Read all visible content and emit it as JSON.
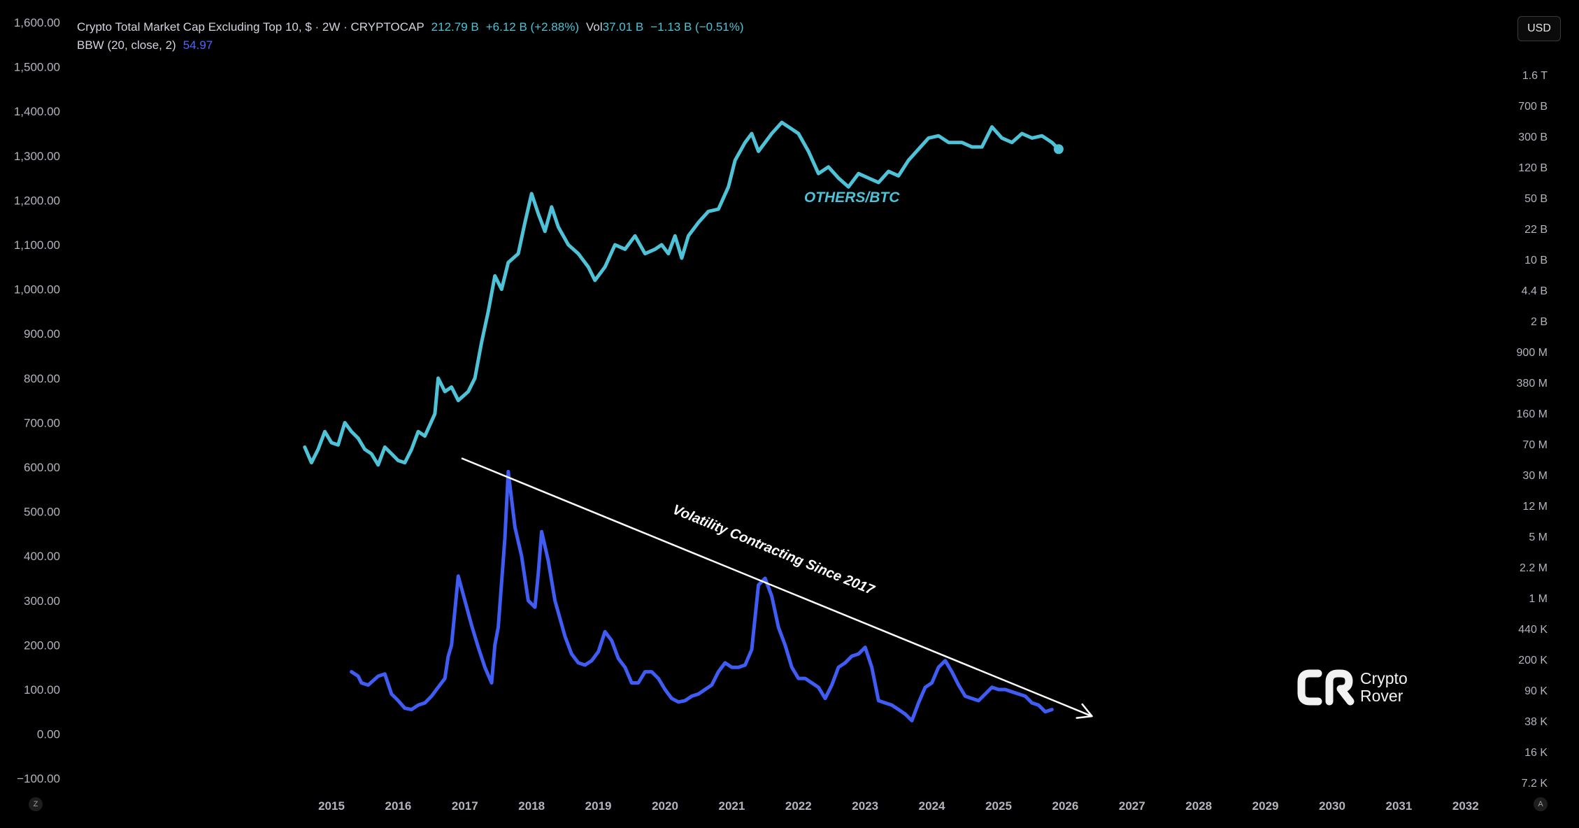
{
  "legend": {
    "title": "Crypto Total Market Cap Excluding Top 10, $ · 2W · CRYPTOCAP",
    "price": "212.79 B",
    "change": "+6.12 B (+2.88%)",
    "vol_label": "Vol",
    "vol_value": "37.01 B",
    "vol_change": "−1.13 B (−0.51%)",
    "bbw_label": "BBW (20, close, 2)",
    "bbw_value": "54.97"
  },
  "currency_button": "USD",
  "axis_left_button": "Z",
  "axis_right_button": "A",
  "brand": {
    "line1": "Crypto",
    "line2": "Rover"
  },
  "colors": {
    "others_btc": "#4ec2d6",
    "bbw": "#3f5cf5",
    "trendline": "#ffffff",
    "axis_text": "#b2b5be"
  },
  "chart_data": {
    "type": "line",
    "left_axis": {
      "ticks": [
        "1,600.00",
        "1,500.00",
        "1,400.00",
        "1,300.00",
        "1,200.00",
        "1,100.00",
        "1,000.00",
        "900.00",
        "800.00",
        "700.00",
        "600.00",
        "500.00",
        "400.00",
        "300.00",
        "200.00",
        "100.00",
        "0.00",
        "−100.00"
      ],
      "range": [
        -100,
        1600
      ]
    },
    "right_axis": {
      "ticks": [
        "1.6 T",
        "700 B",
        "300 B",
        "120 B",
        "50 B",
        "22 B",
        "10 B",
        "4.4 B",
        "2 B",
        "900 M",
        "380 M",
        "160 M",
        "70 M",
        "30 M",
        "12 M",
        "5 M",
        "2.2 M",
        "1 M",
        "440 K",
        "200 K",
        "90 K",
        "38 K",
        "16 K",
        "7.2 K"
      ]
    },
    "x_axis": {
      "ticks": [
        "2015",
        "2016",
        "2017",
        "2018",
        "2019",
        "2020",
        "2021",
        "2022",
        "2023",
        "2024",
        "2025",
        "2026",
        "2027",
        "2028",
        "2029",
        "2030",
        "2031",
        "2032"
      ],
      "range": [
        2014.0,
        2032.3
      ]
    },
    "series": [
      {
        "name": "OTHERS/BTC",
        "points": [
          [
            2014.6,
            645
          ],
          [
            2014.7,
            610
          ],
          [
            2014.8,
            640
          ],
          [
            2014.9,
            680
          ],
          [
            2015.0,
            655
          ],
          [
            2015.1,
            650
          ],
          [
            2015.2,
            700
          ],
          [
            2015.3,
            680
          ],
          [
            2015.4,
            665
          ],
          [
            2015.5,
            640
          ],
          [
            2015.6,
            630
          ],
          [
            2015.7,
            605
          ],
          [
            2015.8,
            645
          ],
          [
            2015.9,
            630
          ],
          [
            2016.0,
            615
          ],
          [
            2016.1,
            610
          ],
          [
            2016.2,
            640
          ],
          [
            2016.3,
            680
          ],
          [
            2016.4,
            670
          ],
          [
            2016.55,
            720
          ],
          [
            2016.6,
            800
          ],
          [
            2016.7,
            770
          ],
          [
            2016.8,
            780
          ],
          [
            2016.9,
            750
          ],
          [
            2017.05,
            770
          ],
          [
            2017.15,
            800
          ],
          [
            2017.25,
            880
          ],
          [
            2017.35,
            950
          ],
          [
            2017.45,
            1030
          ],
          [
            2017.55,
            1000
          ],
          [
            2017.65,
            1060
          ],
          [
            2017.8,
            1080
          ],
          [
            2017.9,
            1150
          ],
          [
            2018.0,
            1215
          ],
          [
            2018.1,
            1170
          ],
          [
            2018.2,
            1130
          ],
          [
            2018.3,
            1185
          ],
          [
            2018.4,
            1140
          ],
          [
            2018.55,
            1100
          ],
          [
            2018.7,
            1080
          ],
          [
            2018.85,
            1050
          ],
          [
            2018.95,
            1020
          ],
          [
            2019.1,
            1050
          ],
          [
            2019.25,
            1100
          ],
          [
            2019.4,
            1090
          ],
          [
            2019.55,
            1120
          ],
          [
            2019.7,
            1080
          ],
          [
            2019.85,
            1090
          ],
          [
            2019.95,
            1100
          ],
          [
            2020.05,
            1080
          ],
          [
            2020.15,
            1120
          ],
          [
            2020.25,
            1070
          ],
          [
            2020.35,
            1120
          ],
          [
            2020.5,
            1150
          ],
          [
            2020.65,
            1175
          ],
          [
            2020.8,
            1180
          ],
          [
            2020.95,
            1230
          ],
          [
            2021.05,
            1290
          ],
          [
            2021.2,
            1330
          ],
          [
            2021.3,
            1350
          ],
          [
            2021.4,
            1310
          ],
          [
            2021.5,
            1330
          ],
          [
            2021.6,
            1350
          ],
          [
            2021.75,
            1375
          ],
          [
            2021.9,
            1360
          ],
          [
            2022.0,
            1350
          ],
          [
            2022.15,
            1310
          ],
          [
            2022.3,
            1260
          ],
          [
            2022.45,
            1275
          ],
          [
            2022.6,
            1250
          ],
          [
            2022.75,
            1230
          ],
          [
            2022.9,
            1260
          ],
          [
            2023.05,
            1250
          ],
          [
            2023.2,
            1240
          ],
          [
            2023.35,
            1265
          ],
          [
            2023.5,
            1255
          ],
          [
            2023.65,
            1290
          ],
          [
            2023.8,
            1315
          ],
          [
            2023.95,
            1340
          ],
          [
            2024.1,
            1345
          ],
          [
            2024.25,
            1330
          ],
          [
            2024.45,
            1330
          ],
          [
            2024.6,
            1320
          ],
          [
            2024.75,
            1320
          ],
          [
            2024.9,
            1365
          ],
          [
            2025.05,
            1340
          ],
          [
            2025.2,
            1330
          ],
          [
            2025.35,
            1350
          ],
          [
            2025.5,
            1340
          ],
          [
            2025.65,
            1345
          ],
          [
            2025.8,
            1330
          ],
          [
            2025.9,
            1315
          ]
        ]
      },
      {
        "name": "BBW (20, close, 2)",
        "points": [
          [
            2015.3,
            140
          ],
          [
            2015.4,
            130
          ],
          [
            2015.45,
            115
          ],
          [
            2015.55,
            110
          ],
          [
            2015.7,
            130
          ],
          [
            2015.8,
            135
          ],
          [
            2015.9,
            90
          ],
          [
            2016.0,
            75
          ],
          [
            2016.1,
            58
          ],
          [
            2016.2,
            55
          ],
          [
            2016.3,
            65
          ],
          [
            2016.4,
            70
          ],
          [
            2016.5,
            85
          ],
          [
            2016.6,
            105
          ],
          [
            2016.7,
            125
          ],
          [
            2016.75,
            175
          ],
          [
            2016.8,
            200
          ],
          [
            2016.9,
            355
          ],
          [
            2017.0,
            300
          ],
          [
            2017.1,
            245
          ],
          [
            2017.2,
            195
          ],
          [
            2017.3,
            150
          ],
          [
            2017.4,
            115
          ],
          [
            2017.45,
            200
          ],
          [
            2017.5,
            240
          ],
          [
            2017.6,
            440
          ],
          [
            2017.65,
            590
          ],
          [
            2017.75,
            465
          ],
          [
            2017.85,
            400
          ],
          [
            2017.95,
            300
          ],
          [
            2018.05,
            285
          ],
          [
            2018.1,
            360
          ],
          [
            2018.15,
            455
          ],
          [
            2018.25,
            390
          ],
          [
            2018.35,
            300
          ],
          [
            2018.5,
            220
          ],
          [
            2018.6,
            180
          ],
          [
            2018.7,
            160
          ],
          [
            2018.8,
            155
          ],
          [
            2018.9,
            165
          ],
          [
            2019.0,
            185
          ],
          [
            2019.1,
            230
          ],
          [
            2019.2,
            210
          ],
          [
            2019.3,
            170
          ],
          [
            2019.4,
            150
          ],
          [
            2019.5,
            115
          ],
          [
            2019.6,
            115
          ],
          [
            2019.7,
            140
          ],
          [
            2019.8,
            140
          ],
          [
            2019.9,
            125
          ],
          [
            2020.0,
            100
          ],
          [
            2020.1,
            80
          ],
          [
            2020.2,
            72
          ],
          [
            2020.3,
            75
          ],
          [
            2020.4,
            85
          ],
          [
            2020.5,
            90
          ],
          [
            2020.6,
            100
          ],
          [
            2020.7,
            110
          ],
          [
            2020.8,
            140
          ],
          [
            2020.9,
            160
          ],
          [
            2021.0,
            150
          ],
          [
            2021.1,
            150
          ],
          [
            2021.2,
            155
          ],
          [
            2021.3,
            190
          ],
          [
            2021.4,
            335
          ],
          [
            2021.5,
            350
          ],
          [
            2021.6,
            310
          ],
          [
            2021.7,
            240
          ],
          [
            2021.8,
            200
          ],
          [
            2021.9,
            150
          ],
          [
            2022.0,
            125
          ],
          [
            2022.1,
            125
          ],
          [
            2022.2,
            115
          ],
          [
            2022.3,
            105
          ],
          [
            2022.4,
            80
          ],
          [
            2022.5,
            110
          ],
          [
            2022.6,
            150
          ],
          [
            2022.7,
            160
          ],
          [
            2022.8,
            175
          ],
          [
            2022.9,
            180
          ],
          [
            2023.0,
            195
          ],
          [
            2023.1,
            150
          ],
          [
            2023.2,
            75
          ],
          [
            2023.3,
            70
          ],
          [
            2023.4,
            65
          ],
          [
            2023.5,
            55
          ],
          [
            2023.6,
            45
          ],
          [
            2023.7,
            30
          ],
          [
            2023.8,
            70
          ],
          [
            2023.9,
            105
          ],
          [
            2024.0,
            115
          ],
          [
            2024.1,
            150
          ],
          [
            2024.2,
            165
          ],
          [
            2024.3,
            140
          ],
          [
            2024.4,
            110
          ],
          [
            2024.5,
            85
          ],
          [
            2024.6,
            80
          ],
          [
            2024.7,
            75
          ],
          [
            2024.8,
            90
          ],
          [
            2024.9,
            105
          ],
          [
            2025.0,
            100
          ],
          [
            2025.1,
            100
          ],
          [
            2025.2,
            95
          ],
          [
            2025.3,
            90
          ],
          [
            2025.4,
            85
          ],
          [
            2025.5,
            70
          ],
          [
            2025.6,
            65
          ],
          [
            2025.7,
            50
          ],
          [
            2025.8,
            55
          ]
        ]
      }
    ],
    "annotations": [
      {
        "text": "OTHERS/BTC",
        "color": "#4ec2d6"
      },
      {
        "text": "Volatility Contracting Since 2017",
        "color": "#ffffff"
      }
    ],
    "trendline": {
      "start": [
        2016.95,
        620
      ],
      "end": [
        2026.4,
        40
      ],
      "arrow": true
    },
    "grid": false
  }
}
